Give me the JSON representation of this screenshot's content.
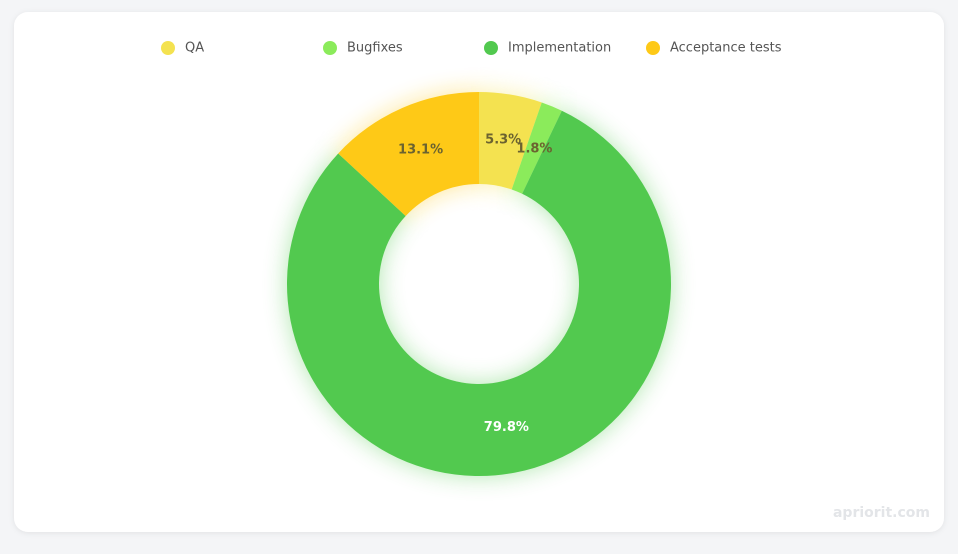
{
  "chart_data": {
    "type": "donut",
    "series": [
      {
        "name": "QA",
        "color": "#f4e250",
        "values": [
          5.3
        ],
        "value_labels": [
          "5.3%"
        ]
      },
      {
        "name": "Bugfixes",
        "color": "#8beb5b",
        "values": [
          1.8
        ],
        "value_labels": [
          "1.8%"
        ]
      },
      {
        "name": "Implementation",
        "color": "#52c94f",
        "values": [
          79.8
        ],
        "value_labels": [
          "79.8%"
        ]
      },
      {
        "name": "Acceptance tests",
        "color": "#fec917",
        "values": [
          13.1
        ],
        "value_labels": [
          "13.1%"
        ]
      }
    ],
    "legend": "top",
    "watermark": "apriorit.com"
  }
}
